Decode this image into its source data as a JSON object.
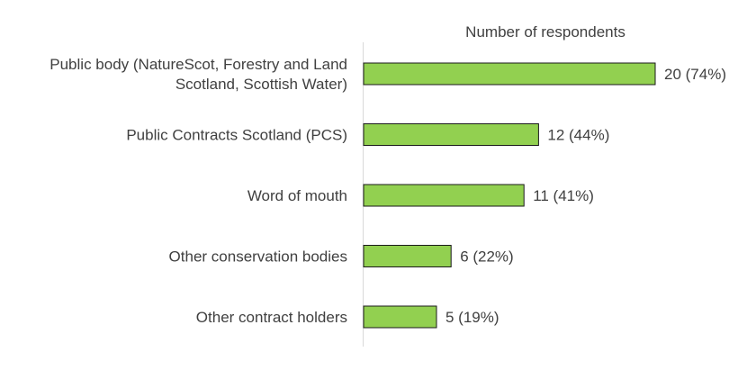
{
  "chart_data": {
    "type": "bar",
    "orientation": "horizontal",
    "title": "Number of respondents",
    "xlabel": "",
    "ylabel": "",
    "xlim": [
      0,
      27
    ],
    "grid": false,
    "legend": "none",
    "categories": [
      [
        "Public body (NatureScot, Forestry and Land",
        "Scotland, Scottish Water)"
      ],
      [
        "Public Contracts Scotland (PCS)"
      ],
      [
        "Word of mouth"
      ],
      [
        "Other conservation bodies"
      ],
      [
        "Other contract holders"
      ]
    ],
    "values": [
      20,
      12,
      11,
      6,
      5
    ],
    "data_labels": [
      "20 (74%)",
      "12 (44%)",
      "11 (41%)",
      "6 (22%)",
      "5 (19%)"
    ],
    "colors": {
      "bar_fill": "#92d050",
      "bar_stroke": "#1a1a1a",
      "axis": "#d9d9d9",
      "text": "#404040"
    }
  }
}
